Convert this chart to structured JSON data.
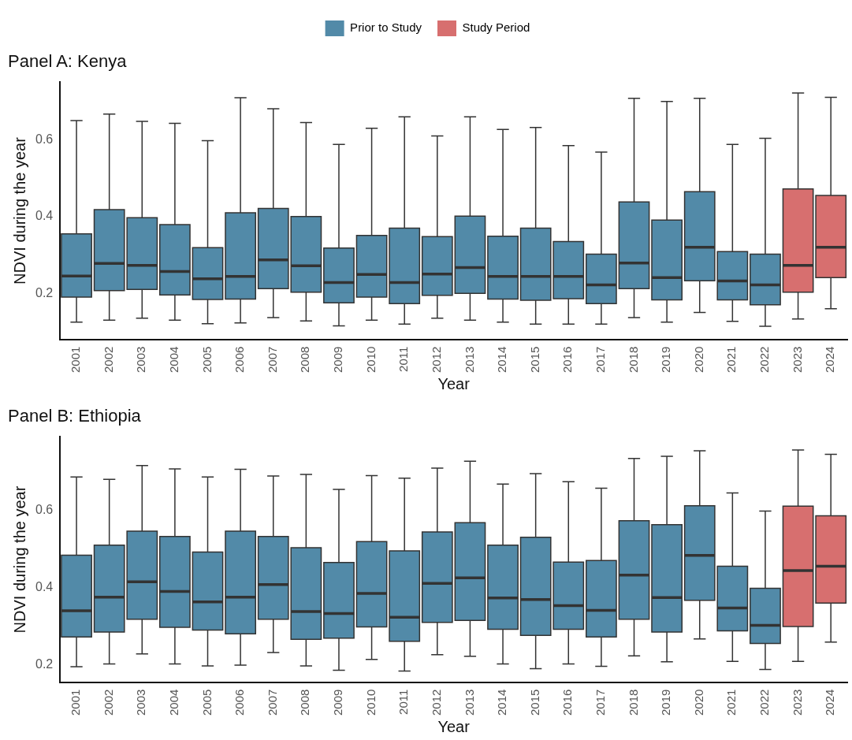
{
  "chart_data": [
    {
      "type": "box",
      "title": "Panel A: Kenya",
      "xlabel": "Year",
      "ylabel": "NDVI during the year",
      "legend": "top",
      "categories": [
        "2001",
        "2002",
        "2003",
        "2004",
        "2005",
        "2006",
        "2007",
        "2008",
        "2009",
        "2010",
        "2011",
        "2012",
        "2013",
        "2014",
        "2015",
        "2016",
        "2017",
        "2018",
        "2019",
        "2020",
        "2021",
        "2022",
        "2023",
        "2024"
      ],
      "ylim": [
        0.08,
        0.75
      ],
      "yticks": [
        0.2,
        0.4,
        0.6
      ],
      "series": [
        {
          "name": "Prior to Study",
          "color": "#528aa8",
          "boxes": [
            {
              "low": 0.125,
              "q1": 0.19,
              "median": 0.245,
              "q3": 0.355,
              "high": 0.65
            },
            {
              "low": 0.13,
              "q1": 0.207,
              "median": 0.278,
              "q3": 0.418,
              "high": 0.667
            },
            {
              "low": 0.135,
              "q1": 0.21,
              "median": 0.273,
              "q3": 0.397,
              "high": 0.648
            },
            {
              "low": 0.13,
              "q1": 0.196,
              "median": 0.257,
              "q3": 0.379,
              "high": 0.643
            },
            {
              "low": 0.121,
              "q1": 0.184,
              "median": 0.238,
              "q3": 0.319,
              "high": 0.598
            },
            {
              "low": 0.123,
              "q1": 0.185,
              "median": 0.244,
              "q3": 0.41,
              "high": 0.71
            },
            {
              "low": 0.137,
              "q1": 0.212,
              "median": 0.287,
              "q3": 0.421,
              "high": 0.681
            },
            {
              "low": 0.128,
              "q1": 0.203,
              "median": 0.272,
              "q3": 0.4,
              "high": 0.645
            },
            {
              "low": 0.115,
              "q1": 0.175,
              "median": 0.228,
              "q3": 0.318,
              "high": 0.588
            },
            {
              "low": 0.13,
              "q1": 0.19,
              "median": 0.249,
              "q3": 0.351,
              "high": 0.63
            },
            {
              "low": 0.12,
              "q1": 0.173,
              "median": 0.228,
              "q3": 0.37,
              "high": 0.66
            },
            {
              "low": 0.135,
              "q1": 0.195,
              "median": 0.25,
              "q3": 0.348,
              "high": 0.61
            },
            {
              "low": 0.13,
              "q1": 0.2,
              "median": 0.267,
              "q3": 0.401,
              "high": 0.66
            },
            {
              "low": 0.125,
              "q1": 0.185,
              "median": 0.244,
              "q3": 0.349,
              "high": 0.627
            },
            {
              "low": 0.12,
              "q1": 0.182,
              "median": 0.244,
              "q3": 0.37,
              "high": 0.632
            },
            {
              "low": 0.12,
              "q1": 0.186,
              "median": 0.244,
              "q3": 0.335,
              "high": 0.585
            },
            {
              "low": 0.12,
              "q1": 0.173,
              "median": 0.222,
              "q3": 0.302,
              "high": 0.568
            },
            {
              "low": 0.137,
              "q1": 0.212,
              "median": 0.279,
              "q3": 0.438,
              "high": 0.708
            },
            {
              "low": 0.125,
              "q1": 0.183,
              "median": 0.241,
              "q3": 0.391,
              "high": 0.7
            },
            {
              "low": 0.15,
              "q1": 0.233,
              "median": 0.32,
              "q3": 0.465,
              "high": 0.708
            },
            {
              "low": 0.127,
              "q1": 0.183,
              "median": 0.232,
              "q3": 0.309,
              "high": 0.588
            },
            {
              "low": 0.114,
              "q1": 0.17,
              "median": 0.222,
              "q3": 0.302,
              "high": 0.604
            },
            null,
            null
          ]
        },
        {
          "name": "Study Period",
          "color": "#d76f6f",
          "boxes": [
            null,
            null,
            null,
            null,
            null,
            null,
            null,
            null,
            null,
            null,
            null,
            null,
            null,
            null,
            null,
            null,
            null,
            null,
            null,
            null,
            null,
            null,
            {
              "low": 0.133,
              "q1": 0.203,
              "median": 0.273,
              "q3": 0.472,
              "high": 0.722
            },
            {
              "low": 0.16,
              "q1": 0.241,
              "median": 0.32,
              "q3": 0.455,
              "high": 0.711
            }
          ]
        }
      ]
    },
    {
      "type": "box",
      "title": "Panel B: Ethiopia",
      "xlabel": "Year",
      "ylabel": "NDVI during the year",
      "categories": [
        "2001",
        "2002",
        "2003",
        "2004",
        "2005",
        "2006",
        "2007",
        "2008",
        "2009",
        "2010",
        "2011",
        "2012",
        "2013",
        "2014",
        "2015",
        "2016",
        "2017",
        "2018",
        "2019",
        "2020",
        "2021",
        "2022",
        "2023",
        "2024"
      ],
      "ylim": [
        0.155,
        0.79
      ],
      "yticks": [
        0.2,
        0.4,
        0.6
      ],
      "series": [
        {
          "color": "#528aa8",
          "boxes": [
            {
              "low": 0.195,
              "q1": 0.272,
              "median": 0.34,
              "q3": 0.484,
              "high": 0.686
            },
            {
              "low": 0.202,
              "q1": 0.285,
              "median": 0.375,
              "q3": 0.51,
              "high": 0.68
            },
            {
              "low": 0.228,
              "q1": 0.318,
              "median": 0.415,
              "q3": 0.546,
              "high": 0.716
            },
            {
              "low": 0.202,
              "q1": 0.297,
              "median": 0.39,
              "q3": 0.532,
              "high": 0.707
            },
            {
              "low": 0.197,
              "q1": 0.29,
              "median": 0.363,
              "q3": 0.492,
              "high": 0.686
            },
            {
              "low": 0.199,
              "q1": 0.28,
              "median": 0.375,
              "q3": 0.546,
              "high": 0.706
            },
            {
              "low": 0.232,
              "q1": 0.318,
              "median": 0.408,
              "q3": 0.532,
              "high": 0.689
            },
            {
              "low": 0.197,
              "q1": 0.266,
              "median": 0.338,
              "q3": 0.503,
              "high": 0.693
            },
            {
              "low": 0.186,
              "q1": 0.269,
              "median": 0.333,
              "q3": 0.465,
              "high": 0.654
            },
            {
              "low": 0.214,
              "q1": 0.298,
              "median": 0.385,
              "q3": 0.519,
              "high": 0.69
            },
            {
              "low": 0.184,
              "q1": 0.261,
              "median": 0.323,
              "q3": 0.495,
              "high": 0.683
            },
            {
              "low": 0.226,
              "q1": 0.31,
              "median": 0.411,
              "q3": 0.544,
              "high": 0.709
            },
            {
              "low": 0.222,
              "q1": 0.315,
              "median": 0.425,
              "q3": 0.568,
              "high": 0.727
            },
            {
              "low": 0.202,
              "q1": 0.292,
              "median": 0.373,
              "q3": 0.51,
              "high": 0.668
            },
            {
              "low": 0.19,
              "q1": 0.276,
              "median": 0.369,
              "q3": 0.53,
              "high": 0.695
            },
            {
              "low": 0.202,
              "q1": 0.292,
              "median": 0.353,
              "q3": 0.466,
              "high": 0.674
            },
            {
              "low": 0.196,
              "q1": 0.272,
              "median": 0.341,
              "q3": 0.47,
              "high": 0.657
            },
            {
              "low": 0.223,
              "q1": 0.318,
              "median": 0.432,
              "q3": 0.573,
              "high": 0.734
            },
            {
              "low": 0.208,
              "q1": 0.285,
              "median": 0.374,
              "q3": 0.563,
              "high": 0.74
            },
            {
              "low": 0.267,
              "q1": 0.367,
              "median": 0.483,
              "q3": 0.612,
              "high": 0.754
            },
            {
              "low": 0.209,
              "q1": 0.288,
              "median": 0.347,
              "q3": 0.455,
              "high": 0.645
            },
            {
              "low": 0.188,
              "q1": 0.255,
              "median": 0.302,
              "q3": 0.398,
              "high": 0.598
            },
            null,
            null
          ]
        },
        {
          "color": "#d76f6f",
          "boxes": [
            null,
            null,
            null,
            null,
            null,
            null,
            null,
            null,
            null,
            null,
            null,
            null,
            null,
            null,
            null,
            null,
            null,
            null,
            null,
            null,
            null,
            null,
            {
              "low": 0.209,
              "q1": 0.299,
              "median": 0.444,
              "q3": 0.611,
              "high": 0.756
            },
            {
              "low": 0.259,
              "q1": 0.36,
              "median": 0.455,
              "q3": 0.586,
              "high": 0.745
            }
          ]
        }
      ]
    }
  ]
}
